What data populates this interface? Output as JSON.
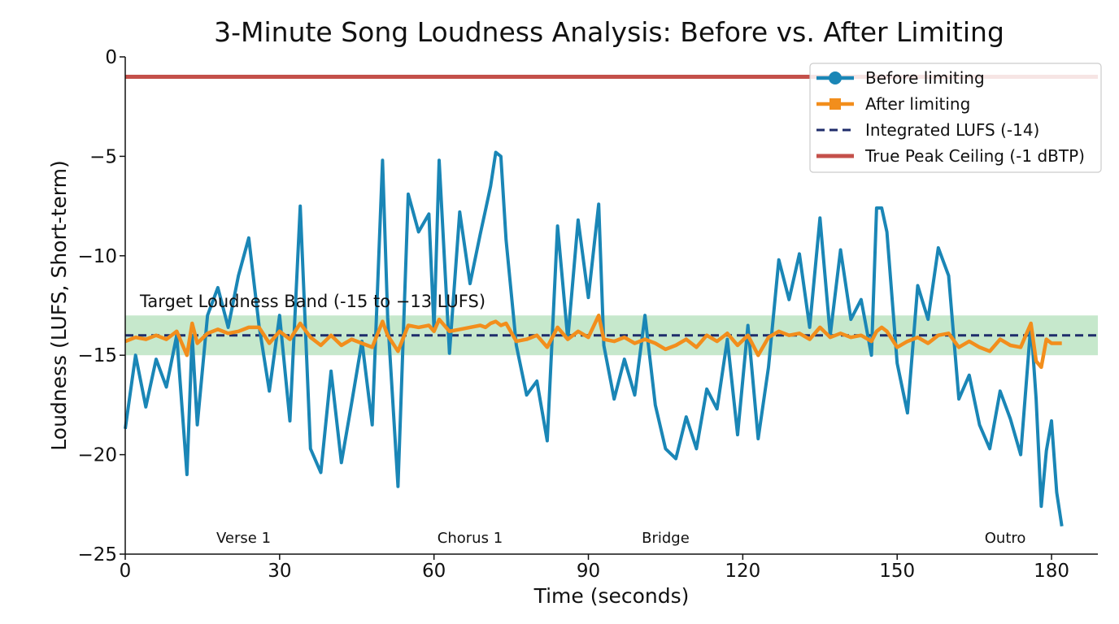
{
  "chart_data": {
    "type": "line",
    "title": "3-Minute Song Loudness Analysis: Before vs. After Limiting",
    "xlabel": "Time (seconds)",
    "ylabel": "Loudness (LUFS, Short-term)",
    "xlim": [
      0,
      189
    ],
    "ylim": [
      -25,
      0
    ],
    "xticks": [
      0,
      30,
      60,
      90,
      120,
      150,
      180
    ],
    "yticks": [
      0,
      -5,
      -10,
      -15,
      -20,
      -25
    ],
    "xtick_labels": [
      "0",
      "30",
      "60",
      "90",
      "120",
      "150",
      "180"
    ],
    "ytick_labels": [
      "0",
      "−5",
      "−10",
      "−15",
      "−20",
      "−25"
    ],
    "grid": false,
    "legend": "top-right",
    "band": {
      "label": "Target Loudness Band (-15 to −13 LUFS)",
      "y0": -15,
      "y1": -13,
      "color": "#a8dcb0"
    },
    "sections": [
      {
        "label": "Verse 1",
        "x": 23
      },
      {
        "label": "Chorus 1",
        "x": 67
      },
      {
        "label": "Bridge",
        "x": 105
      },
      {
        "label": "Outro",
        "x": 171
      }
    ],
    "series": [
      {
        "name": "Before limiting",
        "color": "#1a86b6",
        "marker": "circle",
        "x": [
          0,
          2,
          4,
          6,
          8,
          10,
          12,
          13,
          14,
          16,
          18,
          20,
          22,
          24,
          26,
          28,
          30,
          32,
          34,
          36,
          38,
          40,
          42,
          44,
          46,
          48,
          50,
          51,
          53,
          55,
          57,
          59,
          60,
          61,
          63,
          65,
          67,
          69,
          70,
          71,
          72,
          73,
          74,
          76,
          78,
          80,
          82,
          84,
          86,
          88,
          90,
          92,
          93,
          95,
          97,
          99,
          101,
          103,
          105,
          107,
          109,
          111,
          113,
          115,
          117,
          119,
          121,
          123,
          125,
          127,
          129,
          131,
          133,
          135,
          137,
          139,
          141,
          143,
          145,
          146,
          147,
          148,
          150,
          152,
          154,
          156,
          158,
          160,
          162,
          164,
          166,
          168,
          170,
          172,
          174,
          176,
          177,
          178,
          179,
          180,
          181,
          182
        ],
        "values": [
          -18.7,
          -15.0,
          -17.6,
          -15.2,
          -16.6,
          -14.0,
          -21.0,
          -14.0,
          -18.5,
          -13.0,
          -11.6,
          -13.6,
          -11.0,
          -9.1,
          -13.5,
          -16.8,
          -13.0,
          -18.3,
          -7.5,
          -19.7,
          -20.9,
          -15.8,
          -20.4,
          -17.4,
          -14.3,
          -18.5,
          -5.2,
          -13.1,
          -21.6,
          -6.9,
          -8.8,
          -7.9,
          -13.7,
          -5.2,
          -14.9,
          -7.8,
          -11.4,
          -8.9,
          -7.7,
          -6.5,
          -4.8,
          -5.0,
          -9.2,
          -14.5,
          -17.0,
          -16.3,
          -19.3,
          -8.5,
          -14.2,
          -8.2,
          -12.1,
          -7.4,
          -14.5,
          -17.2,
          -15.2,
          -17.0,
          -13.0,
          -17.5,
          -19.7,
          -20.2,
          -18.1,
          -19.7,
          -16.7,
          -17.7,
          -14.2,
          -19.0,
          -13.5,
          -19.2,
          -15.6,
          -10.2,
          -12.2,
          -9.9,
          -13.6,
          -8.1,
          -14.0,
          -9.7,
          -13.2,
          -12.2,
          -15.0,
          -7.6,
          -7.6,
          -8.8,
          -15.4,
          -17.9,
          -11.5,
          -13.2,
          -9.6,
          -11.0,
          -17.2,
          -16.0,
          -18.5,
          -19.7,
          -16.8,
          -18.2,
          -20.0,
          -13.4,
          -17.2,
          -22.6,
          -19.8,
          -18.3,
          -21.9,
          -23.6
        ]
      },
      {
        "name": "After limiting",
        "color": "#f28e1c",
        "marker": "square",
        "x": [
          0,
          2,
          4,
          6,
          8,
          10,
          12,
          13,
          14,
          16,
          18,
          20,
          22,
          24,
          26,
          28,
          30,
          32,
          34,
          36,
          38,
          40,
          42,
          44,
          46,
          48,
          50,
          51,
          53,
          55,
          57,
          59,
          60,
          61,
          63,
          65,
          67,
          69,
          70,
          71,
          72,
          73,
          74,
          76,
          78,
          80,
          82,
          84,
          86,
          88,
          90,
          92,
          93,
          95,
          97,
          99,
          101,
          103,
          105,
          107,
          109,
          111,
          113,
          115,
          117,
          119,
          121,
          123,
          125,
          127,
          129,
          131,
          133,
          135,
          137,
          139,
          141,
          143,
          145,
          146,
          147,
          148,
          150,
          152,
          154,
          156,
          158,
          160,
          162,
          164,
          166,
          168,
          170,
          172,
          174,
          176,
          177,
          178,
          179,
          180,
          181,
          182
        ],
        "values": [
          -14.3,
          -14.1,
          -14.2,
          -14.0,
          -14.2,
          -13.8,
          -15.0,
          -13.4,
          -14.4,
          -13.9,
          -13.7,
          -13.9,
          -13.8,
          -13.6,
          -13.6,
          -14.4,
          -13.8,
          -14.2,
          -13.4,
          -14.1,
          -14.5,
          -14.0,
          -14.5,
          -14.2,
          -14.4,
          -14.6,
          -13.3,
          -14.0,
          -14.8,
          -13.5,
          -13.6,
          -13.5,
          -13.8,
          -13.2,
          -13.8,
          -13.7,
          -13.6,
          -13.5,
          -13.6,
          -13.4,
          -13.3,
          -13.5,
          -13.4,
          -14.3,
          -14.2,
          -14.0,
          -14.6,
          -13.6,
          -14.2,
          -13.8,
          -14.1,
          -13.0,
          -14.2,
          -14.3,
          -14.1,
          -14.4,
          -14.2,
          -14.4,
          -14.7,
          -14.5,
          -14.2,
          -14.6,
          -14.0,
          -14.3,
          -13.9,
          -14.5,
          -14.0,
          -15.0,
          -14.1,
          -13.8,
          -14.0,
          -13.9,
          -14.2,
          -13.6,
          -14.1,
          -13.9,
          -14.1,
          -14.0,
          -14.3,
          -13.8,
          -13.6,
          -13.8,
          -14.6,
          -14.3,
          -14.1,
          -14.4,
          -14.0,
          -13.9,
          -14.6,
          -14.3,
          -14.6,
          -14.8,
          -14.2,
          -14.5,
          -14.6,
          -13.4,
          -15.3,
          -15.6,
          -14.2,
          -14.4,
          -14.4,
          -14.4
        ]
      },
      {
        "name": "Integrated LUFS (-14)",
        "color": "#1f2d6b",
        "style": "dashed",
        "y": -14
      },
      {
        "name": "True Peak Ceiling (-1 dBTP)",
        "color": "#c4504a",
        "style": "solid",
        "y": -1
      }
    ]
  }
}
